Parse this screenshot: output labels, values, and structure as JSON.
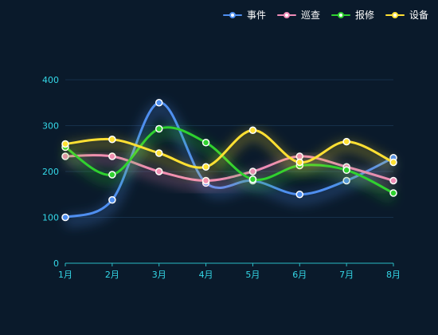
{
  "chart_data": {
    "type": "line",
    "categories": [
      "1月",
      "2月",
      "3月",
      "4月",
      "5月",
      "6月",
      "7月",
      "8月"
    ],
    "series": [
      {
        "name": "事件",
        "color": "#4f8ff0",
        "values": [
          100,
          138,
          350,
          175,
          180,
          150,
          180,
          230
        ]
      },
      {
        "name": "巡查",
        "color": "#f08cb8",
        "values": [
          233,
          233,
          200,
          180,
          200,
          233,
          210,
          180
        ]
      },
      {
        "name": "报修",
        "color": "#2fd12f",
        "values": [
          253,
          193,
          293,
          263,
          183,
          213,
          203,
          153
        ]
      },
      {
        "name": "设备",
        "color": "#ffe033",
        "values": [
          260,
          270,
          240,
          210,
          290,
          220,
          265,
          220
        ]
      }
    ],
    "yticks": [
      "0",
      "100",
      "200",
      "300",
      "400"
    ],
    "ylim": [
      0,
      400
    ],
    "legend_position": "top-right",
    "grid": true
  }
}
